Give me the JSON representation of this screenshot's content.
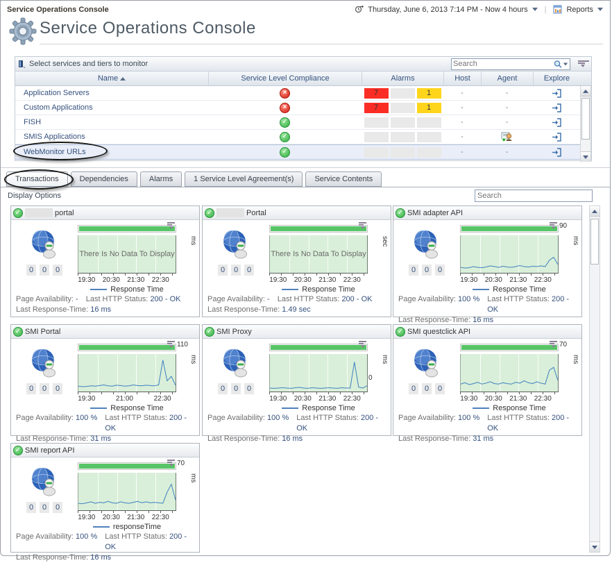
{
  "page": {
    "breadcrumb": "Service Operations Console",
    "title": "Service Operations Console"
  },
  "timebar": {
    "range_label": "Thursday, June 6, 2013 7:14 PM - Now 4 hours",
    "reports_label": "Reports"
  },
  "services_panel": {
    "header": "Select services and tiers to monitor",
    "search_placeholder": "Search",
    "columns": {
      "name": "Name",
      "compliance": "Service Level Compliance",
      "alarms": "Alarms",
      "host": "Host",
      "agent": "Agent",
      "explore": "Explore"
    },
    "rows": [
      {
        "name": "Application Servers",
        "compliance": "error",
        "fatal": "7",
        "critical": "",
        "warning": "1",
        "host": "-",
        "agent": "-"
      },
      {
        "name": "Custom Applications",
        "compliance": "error",
        "fatal": "7",
        "critical": "",
        "warning": "1",
        "host": "-",
        "agent": "-"
      },
      {
        "name": "FISH",
        "compliance": "ok",
        "fatal": "",
        "critical": "",
        "warning": "",
        "host": "-",
        "agent": "-"
      },
      {
        "name": "SMIS Applications",
        "compliance": "ok",
        "fatal": "",
        "critical": "",
        "warning": "",
        "host": "-",
        "agent": "agent-icon"
      },
      {
        "name": "WebMonitor URLs",
        "compliance": "ok",
        "fatal": "",
        "critical": "",
        "warning": "",
        "host": "-",
        "agent": "-"
      }
    ]
  },
  "tabs": {
    "active": "Transactions",
    "items": [
      {
        "label": "Transactions"
      },
      {
        "label": "Dependencies"
      },
      {
        "label": "Alarms"
      },
      {
        "label": "1 Service Level Agreement(s)"
      },
      {
        "label": "Service Contents"
      }
    ]
  },
  "filters": {
    "display_options": "Display Options",
    "search_placeholder": "Search"
  },
  "card_labels": {
    "availability": "Page Availability:",
    "http": "Last HTTP Status:",
    "response": "Last Response-Time:"
  },
  "cards": [
    {
      "title": "portal",
      "status": "ok",
      "counters": [
        "0",
        "0",
        "0"
      ],
      "chart": {
        "type": "line",
        "no_data": true,
        "no_data_text": "There Is No Data To Display",
        "x_ticks": [
          "19:30",
          "20:30",
          "21:30",
          "22:30"
        ],
        "y_unit": "ms",
        "y_max_label": "",
        "legend": "Response Time"
      },
      "availability": "-",
      "http": "200 - OK",
      "response": "16 ms"
    },
    {
      "title": "Portal",
      "status": "ok",
      "counters": [
        "0",
        "0",
        "0"
      ],
      "chart": {
        "type": "line",
        "no_data": true,
        "no_data_text": "There Is No Data To Display",
        "x_ticks": [
          "19:30",
          "20:30",
          "21:30",
          "22:30"
        ],
        "y_unit": "sec",
        "y_max_label": "",
        "legend": "Response Time"
      },
      "availability": "-",
      "http": "200 - OK",
      "response": "1.49 sec"
    },
    {
      "title": "SMI adapter API",
      "status": "ok",
      "counters": [
        "0",
        "0",
        "0"
      ],
      "chart": {
        "type": "line",
        "no_data": false,
        "x_ticks": [
          "19:30",
          "20:30",
          "21:30",
          "22:30"
        ],
        "y_unit": "ms",
        "y_max_label": "90",
        "legend": "Response Time",
        "plot_max": 90,
        "values": [
          10,
          8,
          9,
          12,
          10,
          9,
          11,
          14,
          12,
          10,
          13,
          11,
          10,
          12,
          15,
          12,
          11,
          13,
          12,
          14,
          12,
          30,
          38,
          18
        ]
      },
      "availability": "100 %",
      "http": "200 - OK",
      "response": "16 ms"
    },
    {
      "title": "SMI Portal",
      "status": "ok",
      "counters": [
        "0",
        "0",
        "0"
      ],
      "chart": {
        "type": "line",
        "no_data": false,
        "x_ticks": [
          "19:30",
          "21:00",
          "22:30"
        ],
        "y_unit": "ms",
        "y_max_label": "110",
        "legend": "Response Time",
        "plot_max": 110,
        "values": [
          12,
          10,
          11,
          13,
          12,
          14,
          16,
          13,
          12,
          15,
          14,
          12,
          13,
          16,
          14,
          13,
          15,
          14,
          13,
          16,
          100,
          30,
          45,
          15
        ]
      },
      "availability": "100 %",
      "http": "200 - OK",
      "response": "31 ms"
    },
    {
      "title": "SMI Proxy",
      "status": "ok",
      "counters": [
        "0",
        "0",
        "0"
      ],
      "chart": {
        "type": "line",
        "no_data": false,
        "x_ticks": [
          "19:30",
          "20:30",
          "21:30",
          "22:30"
        ],
        "y_unit": "ms",
        "y_max_label": "",
        "y_min_label": "0",
        "legend": "Response Time",
        "plot_max": 100,
        "values": [
          5,
          4,
          5,
          6,
          5,
          4,
          6,
          7,
          5,
          4,
          6,
          5,
          4,
          5,
          6,
          5,
          4,
          6,
          5,
          5,
          85,
          8,
          5,
          12
        ]
      },
      "availability": "100 %",
      "http": "200 - OK",
      "response": "16 ms"
    },
    {
      "title": "SMI questclick API",
      "status": "ok",
      "counters": [
        "0",
        "0",
        "0"
      ],
      "chart": {
        "type": "line",
        "no_data": false,
        "x_ticks": [
          "19:30",
          "20:30",
          "21:30",
          "22:30"
        ],
        "y_unit": "ms",
        "y_max_label": "70",
        "legend": "Response Time",
        "plot_max": 70,
        "values": [
          12,
          15,
          11,
          13,
          16,
          12,
          14,
          17,
          13,
          12,
          15,
          13,
          12,
          16,
          14,
          19,
          15,
          13,
          17,
          14,
          12,
          42,
          48,
          20
        ]
      },
      "availability": "100 %",
      "http": "200 - OK",
      "response": "31 ms"
    },
    {
      "title": "SMI report API",
      "status": "ok",
      "counters": [
        "0",
        "0",
        "0"
      ],
      "chart": {
        "type": "line",
        "no_data": false,
        "x_ticks": [
          "19:30",
          "20:30",
          "21:30",
          "22:30"
        ],
        "y_unit": "ms",
        "y_max_label": "70",
        "legend": "responseTime",
        "plot_max": 70,
        "values": [
          11,
          10,
          12,
          14,
          11,
          13,
          12,
          15,
          12,
          11,
          14,
          12,
          11,
          13,
          15,
          12,
          14,
          12,
          13,
          12,
          11,
          35,
          52,
          18
        ]
      },
      "availability": "100 %",
      "http": "200 - OK",
      "response": "16 ms"
    }
  ]
}
